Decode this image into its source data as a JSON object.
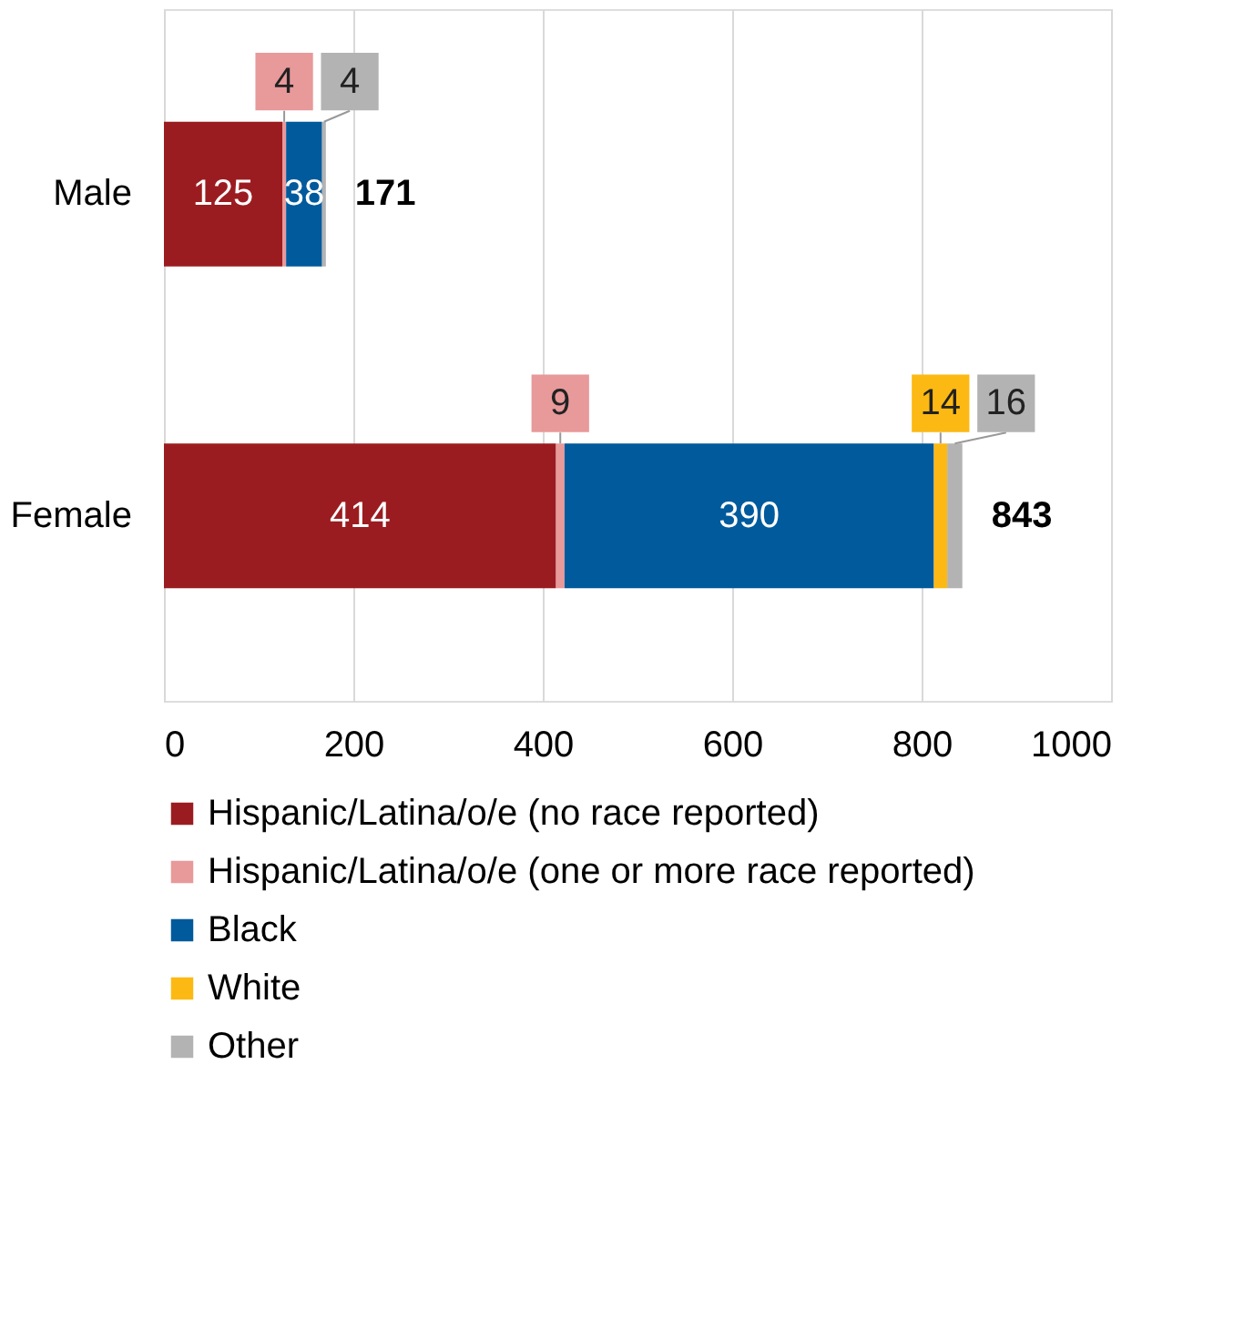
{
  "chart_data": {
    "type": "bar",
    "orientation": "horizontal",
    "stacked": true,
    "categories": [
      "Male",
      "Female"
    ],
    "series": [
      {
        "name": "Hispanic/Latina/o/e (no race reported)",
        "color": "#9b1c20",
        "values": [
          125,
          414
        ]
      },
      {
        "name": "Hispanic/Latina/o/e (one or more race reported)",
        "color": "#e8999a",
        "values": [
          4,
          9
        ]
      },
      {
        "name": "Black",
        "color": "#005a9c",
        "values": [
          38,
          390
        ]
      },
      {
        "name": "White",
        "color": "#fdb913",
        "values": [
          null,
          14
        ]
      },
      {
        "name": "Other",
        "color": "#b3b3b3",
        "values": [
          4,
          16
        ]
      }
    ],
    "data_labels": true,
    "totals": [
      "171",
      "843"
    ],
    "xlim": [
      0,
      1000
    ],
    "xticks": [
      0,
      200,
      400,
      600,
      800,
      1000
    ],
    "grid": "x",
    "legend": "bottom"
  }
}
